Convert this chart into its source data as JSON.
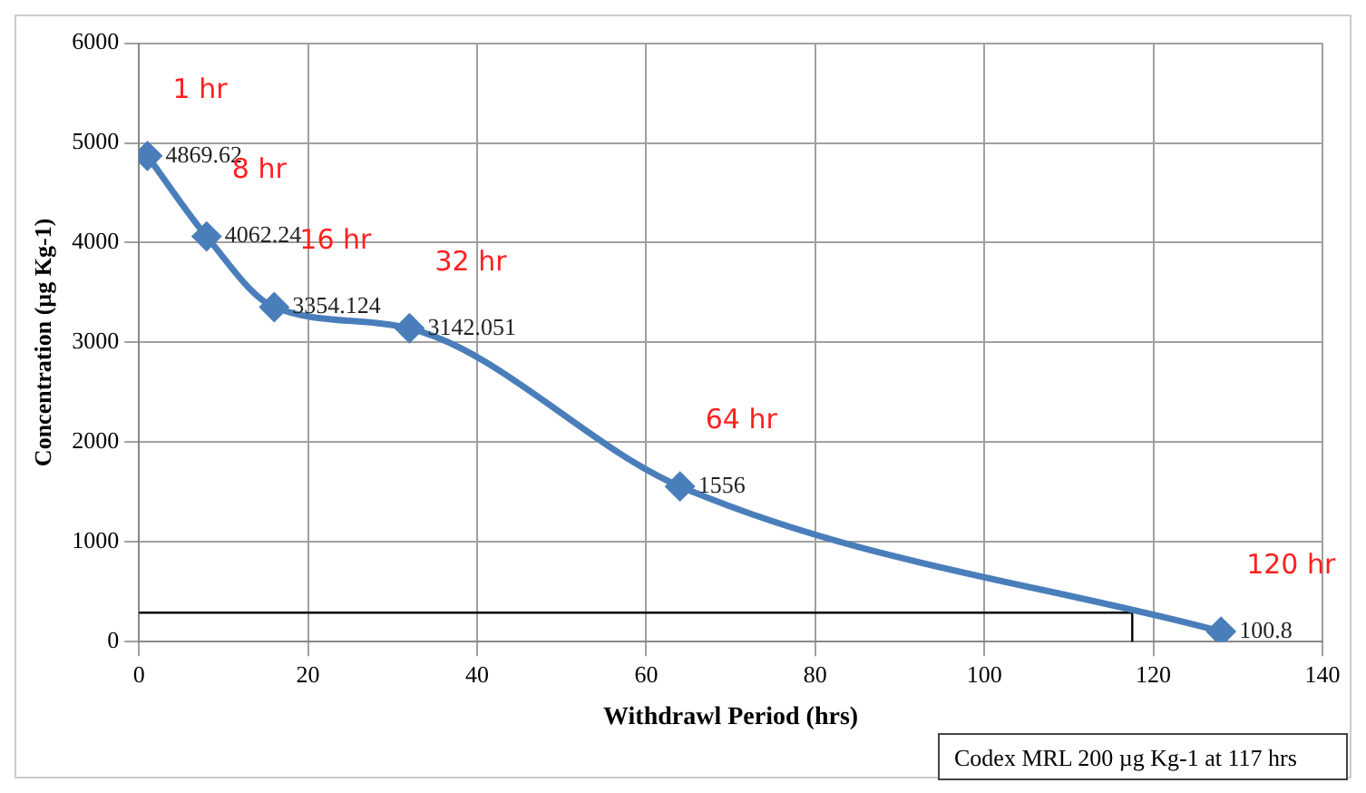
{
  "chart_data": {
    "type": "line",
    "xlabel": "Withdrawl Period (hrs)",
    "ylabel": "Concentration (µg Kg-1)",
    "xlim": [
      0,
      140
    ],
    "xticks": [
      0,
      20,
      40,
      60,
      80,
      100,
      120,
      140
    ],
    "ylim": [
      0,
      6000
    ],
    "yticks": [
      0,
      1000,
      2000,
      3000,
      4000,
      5000,
      6000
    ],
    "grid": true,
    "legend": false,
    "marker": "diamond",
    "series": [
      {
        "color": "#4a7ebb",
        "x": [
          1,
          8,
          16,
          32,
          64,
          128
        ],
        "values": [
          4869.62,
          4062.24,
          3354.124,
          3142.051,
          1556,
          100.8
        ],
        "value_labels": [
          "4869.62",
          "4062.24",
          "3354.124",
          "3142.051",
          "1556",
          "100.8"
        ]
      },
      {
        "color": "#000000",
        "marker": "none",
        "x": [
          0,
          117.5,
          117.5
        ],
        "values": [
          290,
          290,
          0
        ]
      }
    ],
    "annotations": [
      {
        "text": "1 hr",
        "x": 1,
        "y": 4869.62
      },
      {
        "text": "8 hr",
        "x": 8,
        "y": 4062.24
      },
      {
        "text": "16 hr",
        "x": 16,
        "y": 3354.124
      },
      {
        "text": "32 hr",
        "x": 32,
        "y": 3142.051
      },
      {
        "text": "64 hr",
        "x": 64,
        "y": 1556
      },
      {
        "text": "120 hr",
        "x": 128,
        "y": 100.8
      },
      "Codex MRL 200 µg Kg-1 at 117 hrs"
    ]
  }
}
